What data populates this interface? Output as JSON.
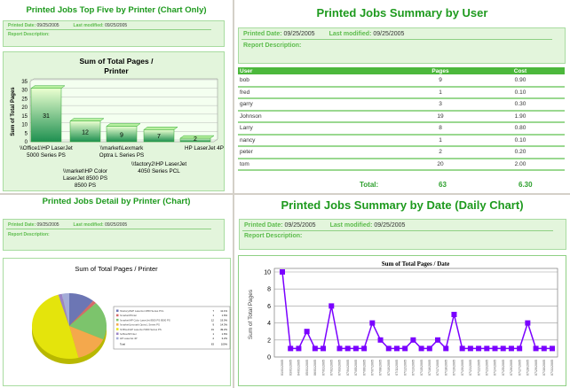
{
  "top_five": {
    "title": "Printed Jobs Top Five by Printer (Chart Only)",
    "printed_date_label": "Printed Date:",
    "printed_date": "09/25/2005",
    "last_modified_label": "Last modified:",
    "last_modified": "09/25/2005",
    "description_label": "Report Description:"
  },
  "by_user": {
    "title": "Printed Jobs Summary by User",
    "printed_date_label": "Printed Date:",
    "printed_date": "09/25/2005",
    "last_modified_label": "Last modified:",
    "last_modified": "09/25/2005",
    "description_label": "Report Description:",
    "columns": [
      "User",
      "Pages",
      "Cost"
    ],
    "rows": [
      [
        "bob",
        "9",
        "0.90"
      ],
      [
        "fred",
        "1",
        "0.10"
      ],
      [
        "garry",
        "3",
        "0.30"
      ],
      [
        "Johnson",
        "19",
        "1.90"
      ],
      [
        "Larry",
        "8",
        "0.80"
      ],
      [
        "nancy",
        "1",
        "0.10"
      ],
      [
        "peter",
        "2",
        "0.20"
      ],
      [
        "tom",
        "20",
        "2.00"
      ]
    ],
    "total_label": "Total:",
    "total_pages": "63",
    "total_cost": "6.30"
  },
  "detail": {
    "title": "Printed Jobs Detail by Printer (Chart)",
    "printed_date_label": "Printed Date:",
    "printed_date": "09/25/2005",
    "last_modified_label": "Last modified:",
    "last_modified": "09/25/2005",
    "description_label": "Report Description:"
  },
  "by_date": {
    "title": "Printed Jobs Summary by Date (Daily Chart)",
    "printed_date_label": "Printed Date:",
    "printed_date": "09/25/2005",
    "last_modified_label": "Last modified:",
    "last_modified": "09/25/2005",
    "description_label": "Report Description:"
  },
  "chart_data": [
    {
      "type": "bar",
      "title": "Sum of Total Pages / Printer",
      "ylabel": "Sum of Total Pages",
      "ylim": [
        0,
        35
      ],
      "yticks": [
        0,
        5,
        10,
        15,
        20,
        25,
        30,
        35
      ],
      "categories": [
        "\\\\Office1\\HP LaserJet 5000 Series PS",
        "\\\\market\\HP Color LaserJet 8500 PS 8500 PS",
        "\\\\market\\Lexmark Optra L Series PS",
        "\\\\factory2\\HP LaserJet 4050 Series PCL",
        "HP LaserJet 4P"
      ],
      "values": [
        31,
        12,
        9,
        7,
        2
      ],
      "color": "#2e9e5a",
      "grid": true
    },
    {
      "type": "pie",
      "title": "Sum of Total Pages / Printer",
      "slices": [
        {
          "label": "\\\\factory2\\HP LaserJet 4050 Series PCL",
          "value": 7,
          "percent": "11.1%",
          "color": "#6c76b4"
        },
        {
          "label": "\\\\market\\Printer",
          "value": 1,
          "percent": "1.6%",
          "color": "#d46a6a"
        },
        {
          "label": "\\\\market\\HP Color LaserJet 8500 PS 8500 PS",
          "value": 12,
          "percent": "19.0%",
          "color": "#7cc46c"
        },
        {
          "label": "\\\\market\\Lexmark Optra L Series PS",
          "value": 9,
          "percent": "14.3%",
          "color": "#f4a84c"
        },
        {
          "label": "\\\\Office1\\HP LaserJet 5000 Series PS",
          "value": 31,
          "percent": "49.2%",
          "color": "#e4e40c"
        },
        {
          "label": "\\\\office2\\Printer",
          "value": 1,
          "percent": "1.6%",
          "color": "#9c84c4"
        },
        {
          "label": "HP LaserJet 4P",
          "value": 2,
          "percent": "3.2%",
          "color": "#a4acd8"
        }
      ],
      "total_label": "Total",
      "total_value": 63,
      "total_percent": "100%",
      "legend": "right"
    },
    {
      "type": "line",
      "title": "Sum of Total Pages / Date",
      "ylabel": "Sum of Total Pages",
      "ylim": [
        0,
        10
      ],
      "yticks": [
        0,
        2,
        4,
        6,
        8,
        10
      ],
      "color": "#7a00ff",
      "grid": true,
      "x": [
        "01/01/2005",
        "03/01/2005",
        "04/01/2005",
        "05/01/2005",
        "06/01/2005",
        "07/01/2005",
        "07/02/2005",
        "07/03/2005",
        "07/04/2005",
        "07/05/2005",
        "07/06/2005",
        "07/07/2005",
        "07/08/2005",
        "07/10/2005",
        "07/11/2005",
        "07/12/2005",
        "07/13/2005",
        "07/15/2005",
        "07/16/2005",
        "07/17/2005",
        "07/18/2005",
        "07/19/2005",
        "07/20/2005",
        "07/21/2005",
        "07/22/2005",
        "07/23/2005",
        "07/24/2005",
        "07/25/2005",
        "07/26/2005",
        "07/27/2005",
        "07/28/2005",
        "07/29/2005",
        "07/30/2005",
        "07/31/2005"
      ],
      "y": [
        10,
        1,
        1,
        3,
        1,
        1,
        6,
        1,
        1,
        1,
        1,
        4,
        2,
        1,
        1,
        1,
        2,
        1,
        1,
        2,
        1,
        5,
        1,
        1,
        1,
        1,
        1,
        1,
        1,
        1,
        4,
        1,
        1,
        1
      ]
    }
  ]
}
